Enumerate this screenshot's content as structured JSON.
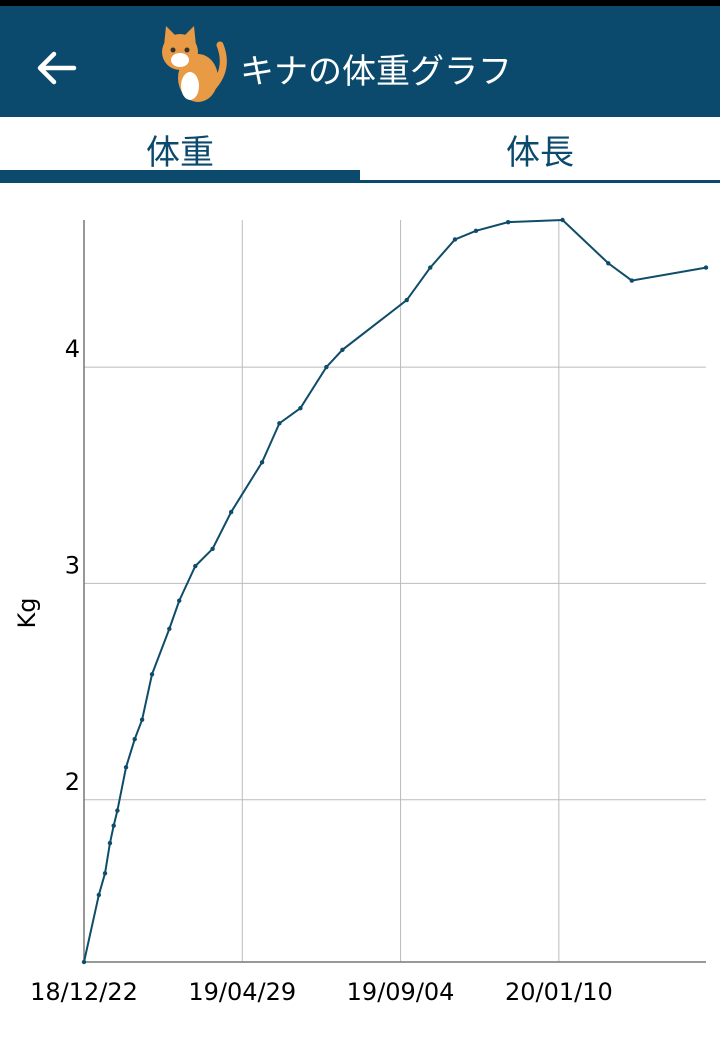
{
  "header": {
    "title": "キナの体重グラフ"
  },
  "tabs": [
    "体重",
    "体長"
  ],
  "chart_data": {
    "type": "line",
    "y_label": "Kg",
    "x": [
      "18/12/22",
      "19/01/03",
      "19/01/08",
      "19/01/12",
      "19/01/15",
      "19/01/18",
      "19/01/25",
      "19/02/01",
      "19/02/07",
      "19/02/15",
      "19/03/01",
      "19/03/09",
      "19/03/22",
      "19/04/05",
      "19/04/20",
      "19/05/15",
      "19/05/29",
      "19/06/15",
      "19/07/06",
      "19/07/19",
      "19/09/09",
      "19/09/28",
      "19/10/18",
      "19/11/04",
      "19/11/30",
      "20/01/13",
      "20/02/19",
      "20/03/09",
      "20/05/08"
    ],
    "series": [
      {
        "color": "#0e4c6a",
        "values": [
          1.25,
          1.56,
          1.66,
          1.8,
          1.88,
          1.95,
          2.15,
          2.28,
          2.37,
          2.58,
          2.79,
          2.92,
          3.08,
          3.16,
          3.33,
          3.56,
          3.74,
          3.81,
          4.0,
          4.08,
          4.31,
          4.46,
          4.59,
          4.63,
          4.67,
          4.68,
          4.48,
          4.4,
          4.46
        ]
      }
    ],
    "xlim": [
      "18/12/22",
      "20/05/08"
    ],
    "xticks": [
      "18/12/22",
      "19/04/29",
      "19/09/04",
      "20/01/10"
    ],
    "ylim": [
      1.25,
      4.68
    ],
    "yticks": [
      2,
      3,
      4
    ],
    "grid": true
  }
}
